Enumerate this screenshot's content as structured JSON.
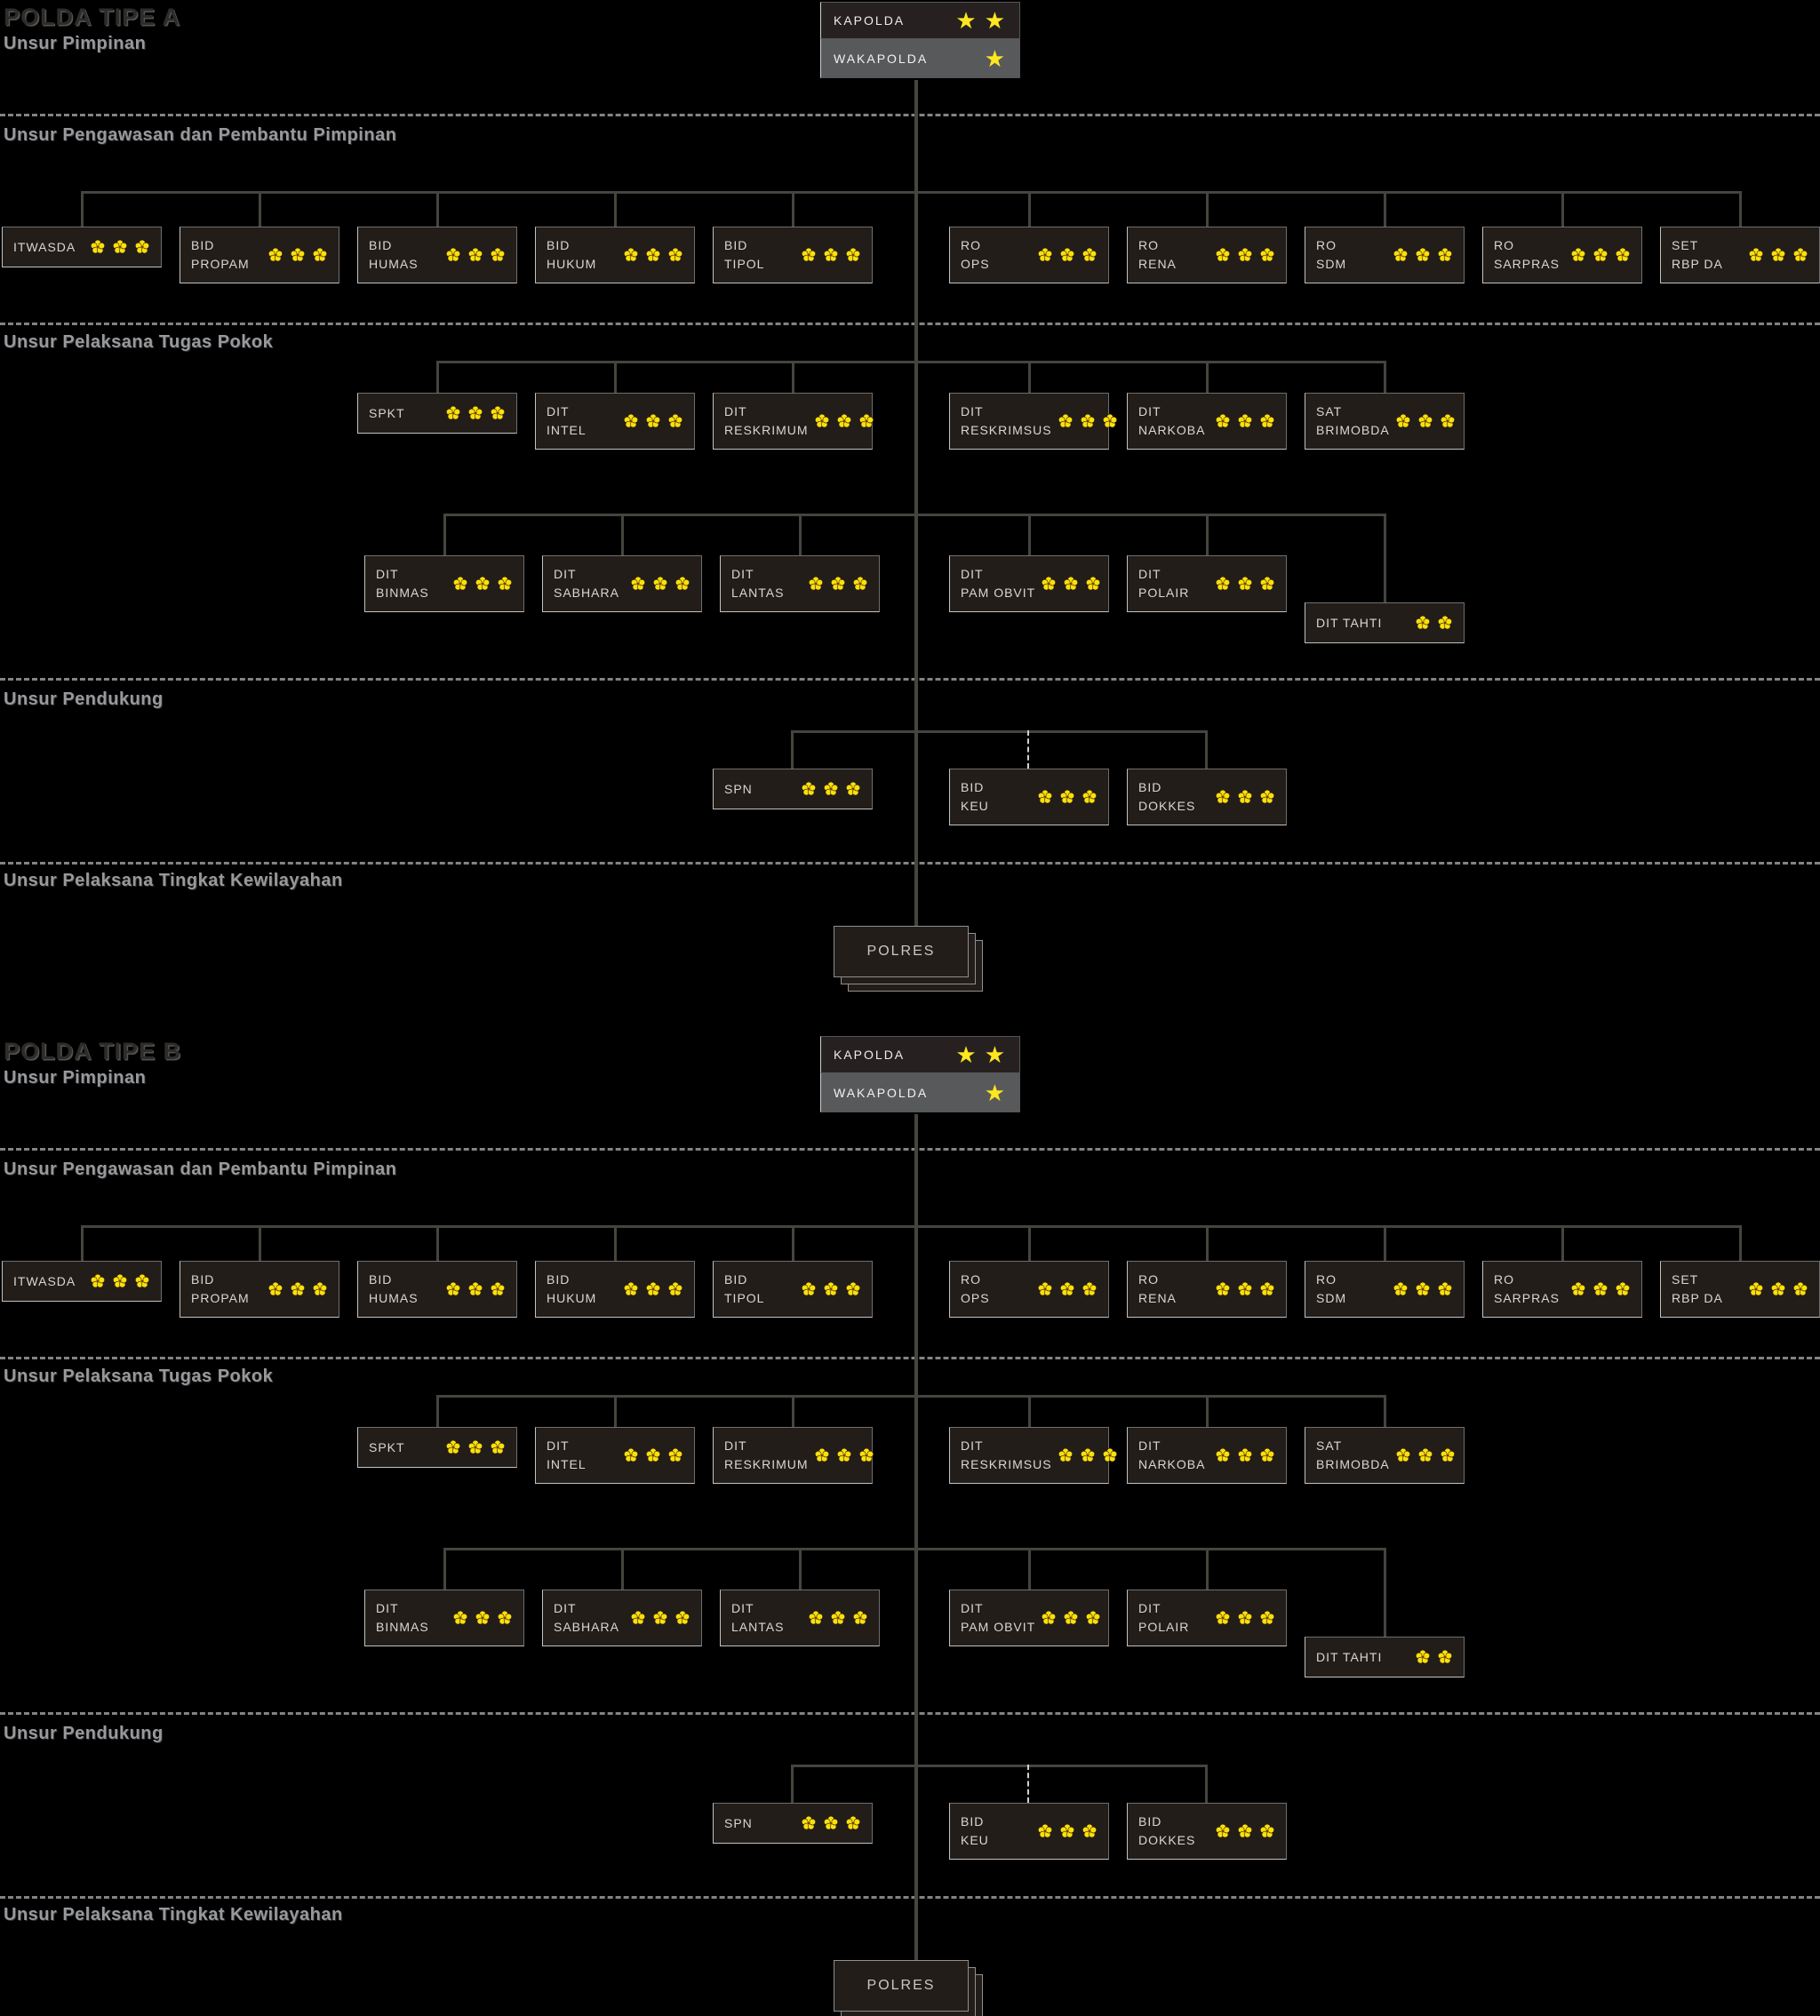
{
  "palette": {
    "accent_yellow": "#ffe71f",
    "flower_yellow": "#ffdf0a",
    "box_bg": "#221d19",
    "wakapolda_bg": "#58595b",
    "line": "#45453f",
    "separator": "#9a9a9a",
    "header_text": "#97999c",
    "title_text": "#2e2c2a",
    "label_text": "#d8d7d4"
  },
  "sections": [
    {
      "title": "POLDA TIPE A",
      "pimpinan_label": "Unsur Pimpinan",
      "headers": {
        "pengawasan": "Unsur Pengawasan dan Pembantu Pimpinan",
        "pelaksana": "Unsur Pelaksana Tugas Pokok",
        "pendukung": "Unsur Pendukung",
        "kewilayahan": "Unsur Pelaksana Tingkat Kewilayahan"
      },
      "kapolda": {
        "label": "KAPOLDA",
        "insignia": "star",
        "stars": 2
      },
      "wakapolda": {
        "label": "WAKAPOLDA",
        "insignia": "star",
        "stars": 1
      },
      "pengawasan_nodes": [
        {
          "lines": [
            "ITWASDA"
          ],
          "insignia": "melati",
          "count": 3
        },
        {
          "lines": [
            "BID",
            "PROPAM"
          ],
          "insignia": "melati",
          "count": 3
        },
        {
          "lines": [
            "BID",
            "HUMAS"
          ],
          "insignia": "melati",
          "count": 3
        },
        {
          "lines": [
            "BID",
            "HUKUM"
          ],
          "insignia": "melati",
          "count": 3
        },
        {
          "lines": [
            "BID",
            "TIPOL"
          ],
          "insignia": "melati",
          "count": 3
        },
        {
          "lines": [
            "RO",
            "OPS"
          ],
          "insignia": "melati",
          "count": 3
        },
        {
          "lines": [
            "RO",
            "RENA"
          ],
          "insignia": "melati",
          "count": 3
        },
        {
          "lines": [
            "RO",
            "SDM"
          ],
          "insignia": "melati",
          "count": 3
        },
        {
          "lines": [
            "RO",
            "SARPRAS"
          ],
          "insignia": "melati",
          "count": 3
        },
        {
          "lines": [
            "SET",
            "RBP DA"
          ],
          "insignia": "melati",
          "count": 3
        }
      ],
      "pelaksana_row1": [
        {
          "lines": [
            "SPKT"
          ],
          "insignia": "melati",
          "count": 3
        },
        {
          "lines": [
            "DIT",
            "INTEL"
          ],
          "insignia": "melati",
          "count": 3
        },
        {
          "lines": [
            "DIT",
            "RESKRIMUM"
          ],
          "insignia": "melati",
          "count": 3
        },
        {
          "lines": [
            "DIT",
            "RESKRIMSUS"
          ],
          "insignia": "melati",
          "count": 3
        },
        {
          "lines": [
            "DIT",
            "NARKOBA"
          ],
          "insignia": "melati",
          "count": 3
        },
        {
          "lines": [
            "SAT",
            "BRIMOBDA"
          ],
          "insignia": "melati",
          "count": 3
        }
      ],
      "pelaksana_row2": [
        {
          "lines": [
            "DIT",
            "BINMAS"
          ],
          "insignia": "melati",
          "count": 3
        },
        {
          "lines": [
            "DIT",
            "SABHARA"
          ],
          "insignia": "melati",
          "count": 3
        },
        {
          "lines": [
            "DIT",
            "LANTAS"
          ],
          "insignia": "melati",
          "count": 3
        },
        {
          "lines": [
            "DIT",
            "PAM OBVIT"
          ],
          "insignia": "melati",
          "count": 3
        },
        {
          "lines": [
            "DIT",
            "POLAIR"
          ],
          "insignia": "melati",
          "count": 3
        },
        {
          "lines": [
            "DIT TAHTI"
          ],
          "insignia": "melati",
          "count": 2
        }
      ],
      "pendukung_nodes": [
        {
          "lines": [
            "SPN"
          ],
          "insignia": "melati",
          "count": 3
        },
        {
          "lines": [
            "BID",
            "KEU"
          ],
          "insignia": "melati",
          "count": 3
        },
        {
          "lines": [
            "BID",
            "DOKKES"
          ],
          "insignia": "melati",
          "count": 3
        }
      ],
      "polres": {
        "label": "POLRES"
      }
    },
    {
      "title": "POLDA TIPE B",
      "pimpinan_label": "Unsur Pimpinan",
      "headers": {
        "pengawasan": "Unsur Pengawasan dan Pembantu Pimpinan",
        "pelaksana": "Unsur Pelaksana Tugas Pokok",
        "pendukung": "Unsur Pendukung",
        "kewilayahan": "Unsur Pelaksana Tingkat Kewilayahan"
      },
      "kapolda": {
        "label": "KAPOLDA",
        "insignia": "star",
        "stars": 2
      },
      "wakapolda": {
        "label": "WAKAPOLDA",
        "insignia": "star",
        "stars": 1
      },
      "pengawasan_nodes": [
        {
          "lines": [
            "ITWASDA"
          ],
          "insignia": "melati",
          "count": 3
        },
        {
          "lines": [
            "BID",
            "PROPAM"
          ],
          "insignia": "melati",
          "count": 3
        },
        {
          "lines": [
            "BID",
            "HUMAS"
          ],
          "insignia": "melati",
          "count": 3
        },
        {
          "lines": [
            "BID",
            "HUKUM"
          ],
          "insignia": "melati",
          "count": 3
        },
        {
          "lines": [
            "BID",
            "TIPOL"
          ],
          "insignia": "melati",
          "count": 3
        },
        {
          "lines": [
            "RO",
            "OPS"
          ],
          "insignia": "melati",
          "count": 3
        },
        {
          "lines": [
            "RO",
            "RENA"
          ],
          "insignia": "melati",
          "count": 3
        },
        {
          "lines": [
            "RO",
            "SDM"
          ],
          "insignia": "melati",
          "count": 3
        },
        {
          "lines": [
            "RO",
            "SARPRAS"
          ],
          "insignia": "melati",
          "count": 3
        },
        {
          "lines": [
            "SET",
            "RBP DA"
          ],
          "insignia": "melati",
          "count": 3
        }
      ],
      "pelaksana_row1": [
        {
          "lines": [
            "SPKT"
          ],
          "insignia": "melati",
          "count": 3
        },
        {
          "lines": [
            "DIT",
            "INTEL"
          ],
          "insignia": "melati",
          "count": 3
        },
        {
          "lines": [
            "DIT",
            "RESKRIMUM"
          ],
          "insignia": "melati",
          "count": 3
        },
        {
          "lines": [
            "DIT",
            "RESKRIMSUS"
          ],
          "insignia": "melati",
          "count": 3
        },
        {
          "lines": [
            "DIT",
            "NARKOBA"
          ],
          "insignia": "melati",
          "count": 3
        },
        {
          "lines": [
            "SAT",
            "BRIMOBDA"
          ],
          "insignia": "melati",
          "count": 3
        }
      ],
      "pelaksana_row2": [
        {
          "lines": [
            "DIT",
            "BINMAS"
          ],
          "insignia": "melati",
          "count": 3
        },
        {
          "lines": [
            "DIT",
            "SABHARA"
          ],
          "insignia": "melati",
          "count": 3
        },
        {
          "lines": [
            "DIT",
            "LANTAS"
          ],
          "insignia": "melati",
          "count": 3
        },
        {
          "lines": [
            "DIT",
            "PAM OBVIT"
          ],
          "insignia": "melati",
          "count": 3
        },
        {
          "lines": [
            "DIT",
            "POLAIR"
          ],
          "insignia": "melati",
          "count": 3
        },
        {
          "lines": [
            "DIT TAHTI"
          ],
          "insignia": "melati",
          "count": 2
        }
      ],
      "pendukung_nodes": [
        {
          "lines": [
            "SPN"
          ],
          "insignia": "melati",
          "count": 3
        },
        {
          "lines": [
            "BID",
            "KEU"
          ],
          "insignia": "melati",
          "count": 3
        },
        {
          "lines": [
            "BID",
            "DOKKES"
          ],
          "insignia": "melati",
          "count": 3
        }
      ],
      "polres": {
        "label": "POLRES"
      }
    }
  ]
}
